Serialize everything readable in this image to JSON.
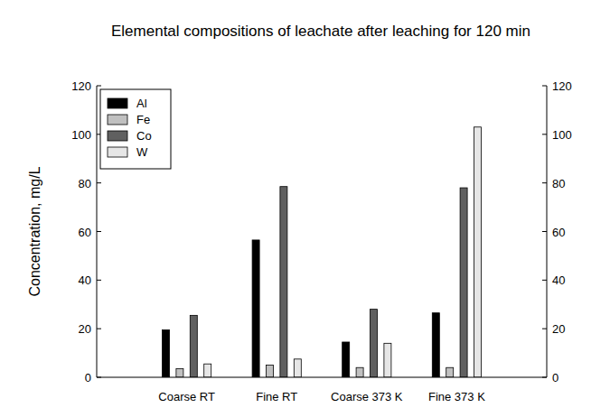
{
  "chart_data": {
    "type": "bar",
    "title": "Elemental compositions of leachate after leaching for 120 min",
    "y_label": "Concentration, mg/L",
    "categories": [
      "Coarse RT",
      "Fine RT",
      "Coarse 373 K",
      "Fine 373 K"
    ],
    "series": [
      {
        "name": "Al",
        "color": "#000000",
        "values": [
          19.5,
          56.5,
          14.5,
          26.5
        ]
      },
      {
        "name": "Fe",
        "color": "#c0c0c0",
        "values": [
          3.5,
          5,
          4,
          4
        ]
      },
      {
        "name": "Co",
        "color": "#606060",
        "values": [
          25.5,
          78.5,
          28,
          78
        ]
      },
      {
        "name": "W",
        "color": "#e6e6e6",
        "values": [
          5.5,
          7.5,
          14,
          103
        ]
      }
    ],
    "ylim": [
      0,
      120
    ],
    "yticks": [
      0,
      20,
      40,
      60,
      80,
      100,
      120
    ],
    "y2lim": [
      0,
      120
    ],
    "y2ticks": [
      0,
      20,
      40,
      60,
      80,
      100,
      120
    ],
    "legend": "upper left",
    "grid": false
  }
}
